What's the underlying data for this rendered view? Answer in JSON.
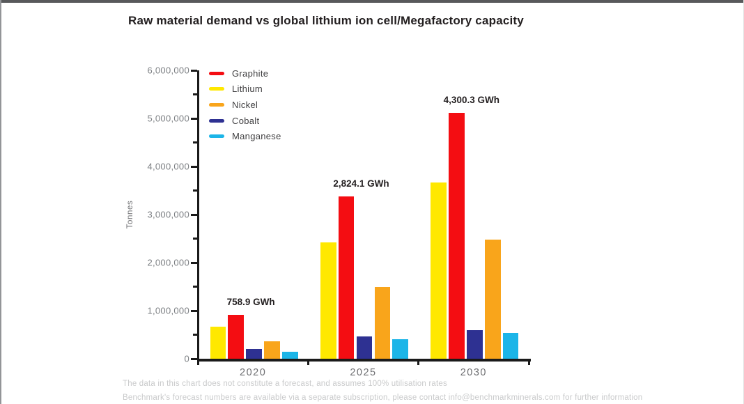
{
  "page": {
    "title": "Raw material demand vs global lithium ion cell/Megafactory capacity",
    "footnote1": "The data in this chart does not constitute a forecast, and assumes 100% utilisation rates",
    "footnote2": "Benchmark's forecast numbers are available via a separate subscription, please contact info@benchmarkminerals.com for further information"
  },
  "colors": {
    "graphite": "#f40d12",
    "lithium": "#ffe800",
    "nickel": "#f9a51b",
    "cobalt": "#2e3192",
    "manganese": "#1cb5e8",
    "axis": "#1a1a1a",
    "top_bar": "#58595b"
  },
  "chart_data": {
    "type": "bar",
    "title": "Raw material demand vs global lithium ion cell/Megafactory capacity",
    "xlabel": "",
    "ylabel": "Tonnes",
    "ylim": [
      0,
      6000000
    ],
    "ytick_step": 1000000,
    "yminor_step": 500000,
    "grid": false,
    "legend_position": "top-left-inside",
    "categories": [
      "2020",
      "2025",
      "2030"
    ],
    "series": [
      {
        "name": "Lithium",
        "color": "#ffe800",
        "values": [
          660000,
          2420000,
          3660000
        ]
      },
      {
        "name": "Graphite",
        "color": "#f40d12",
        "values": [
          920000,
          3370000,
          5110000
        ]
      },
      {
        "name": "Cobalt",
        "color": "#2e3192",
        "values": [
          200000,
          470000,
          590000
        ]
      },
      {
        "name": "Nickel",
        "color": "#f9a51b",
        "values": [
          360000,
          1500000,
          2480000
        ]
      },
      {
        "name": "Manganese",
        "color": "#1cb5e8",
        "values": [
          140000,
          400000,
          530000
        ]
      }
    ],
    "legend": [
      "Graphite",
      "Lithium",
      "Nickel",
      "Cobalt",
      "Manganese"
    ],
    "annotations": [
      {
        "category": "2020",
        "label": "758.9 GWh",
        "above_series": "Graphite"
      },
      {
        "category": "2025",
        "label": "2,824.1 GWh",
        "above_series": "Graphite"
      },
      {
        "category": "2030",
        "label": "4,300.3 GWh",
        "above_series": "Graphite"
      }
    ]
  }
}
